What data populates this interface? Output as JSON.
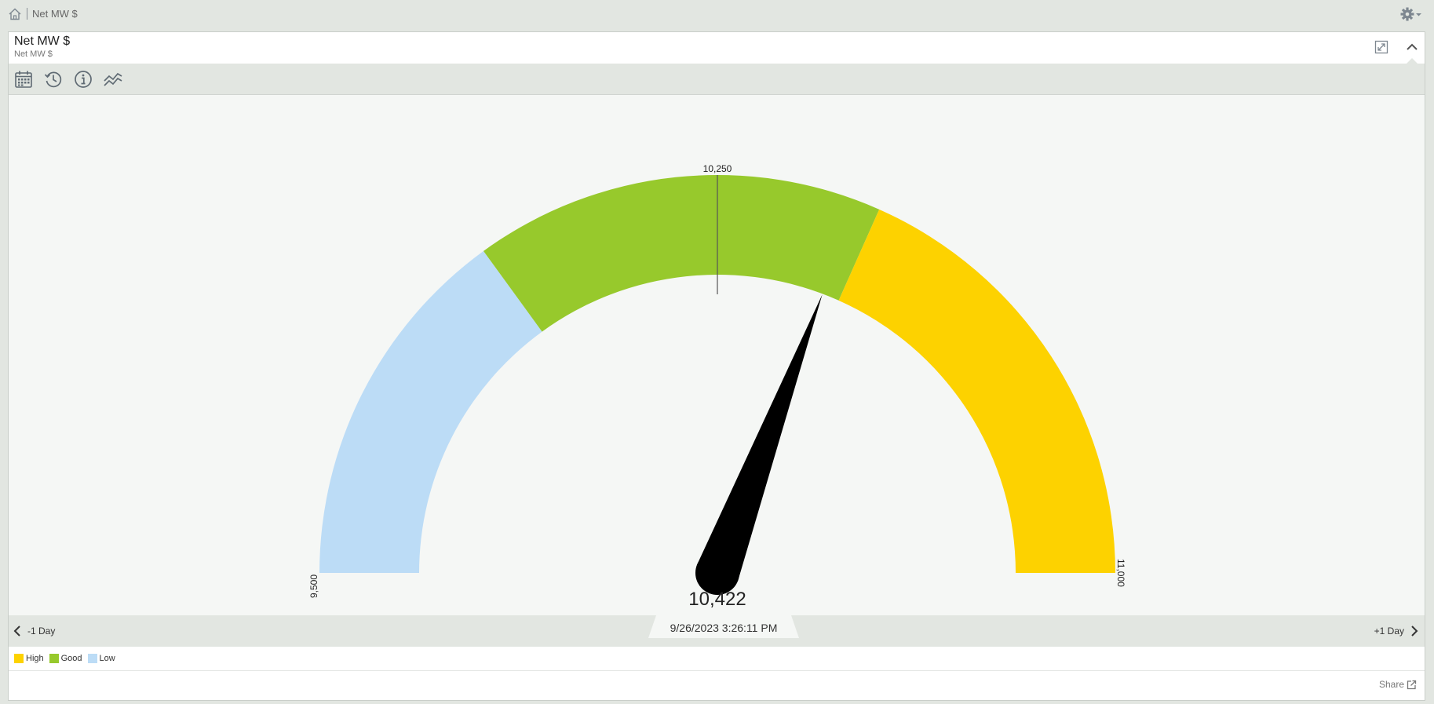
{
  "breadcrumb": {
    "label": "Net MW $"
  },
  "panel": {
    "title": "Net MW $",
    "subtitle": "Net MW $"
  },
  "toolbar": [
    "calendar-icon",
    "history-icon",
    "info-icon",
    "trend-icon"
  ],
  "gauge": {
    "min": 9500,
    "max": 11000,
    "target": 10250,
    "value": 10422,
    "value_label": "10,422",
    "min_label": "9,500",
    "max_label": "11,000",
    "target_label": "10,250",
    "timestamp": "9/26/2023 3:26:11 PM",
    "bands": [
      {
        "name": "Low",
        "from": 9500,
        "to": 9950,
        "color": "#bcdcf6"
      },
      {
        "name": "Good",
        "from": 9950,
        "to": 10450,
        "color": "#97c92c"
      },
      {
        "name": "High",
        "from": 10450,
        "to": 11000,
        "color": "#fdd200"
      }
    ]
  },
  "navigation": {
    "prev_label": "-1 Day",
    "next_label": "+1 Day"
  },
  "legend": [
    {
      "label": "High",
      "color": "#fdd200"
    },
    {
      "label": "Good",
      "color": "#97c92c"
    },
    {
      "label": "Low",
      "color": "#bcdcf6"
    }
  ],
  "share": {
    "label": "Share"
  }
}
